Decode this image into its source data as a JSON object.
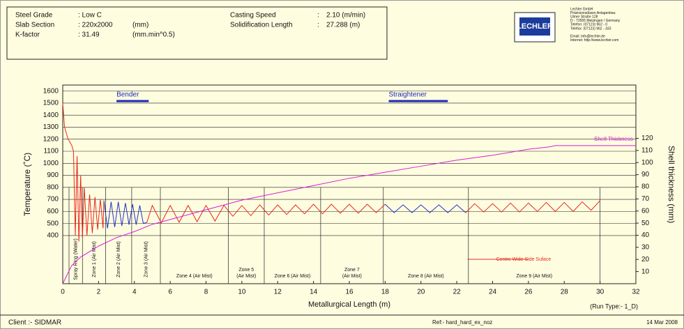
{
  "header": {
    "rows": [
      [
        "Steel Grade",
        ": Low C",
        ""
      ],
      [
        "Slab Section",
        ": 220x2000",
        "(mm)"
      ],
      [
        "K-factor",
        ": 31.49",
        "(mm.min^0.5)"
      ]
    ],
    "rows2": [
      [
        "Casting Speed",
        ":",
        "2.10 (m/min)"
      ],
      [
        "Solidification Length",
        ":",
        "27.288 (m)"
      ]
    ],
    "logo": "LECHLER",
    "company": [
      "Lechler GmbH",
      "Präzisionsdüsen Anlagenbau",
      "Ulmer Straße 128",
      "D - 72555 Metzingen / Germany",
      "Telefon:   (07123) 962 - 0",
      "Telefax:   (07123) 962 - 333",
      "",
      "Email:     info@lechler.de",
      "Internet:  http://www.lechler.com"
    ]
  },
  "chart_data": {
    "type": "line",
    "ylabel": "Temperature  (˚C)",
    "y2label": "Shell thickness  (mm)",
    "xlabel": "Metallurgical Length (m)",
    "xlim": [
      0,
      32
    ],
    "xticks": [
      0,
      2,
      4,
      6,
      8,
      10,
      12,
      14,
      16,
      18,
      20,
      22,
      24,
      26,
      28,
      30,
      32
    ],
    "ylim": [
      0,
      1650
    ],
    "yticks": [
      400,
      500,
      600,
      700,
      800,
      900,
      1000,
      1100,
      1200,
      1300,
      1400,
      1500,
      1600
    ],
    "y2lim": [
      0,
      164
    ],
    "y2ticks": [
      10,
      20,
      30,
      40,
      50,
      60,
      70,
      80,
      90,
      100,
      110,
      120
    ],
    "grid": true,
    "series": [
      {
        "name": "Centre Wide Side Suface",
        "color": "#e8281e",
        "x": [
          0,
          0.1,
          0.3,
          0.5,
          0.6,
          0.7,
          0.8,
          0.9,
          1.0,
          1.1,
          1.2,
          1.35,
          1.5,
          1.65,
          1.8,
          1.95,
          2.1,
          2.25,
          2.3
        ],
        "values": [
          1500,
          1300,
          1200,
          1150,
          1100,
          400,
          1060,
          350,
          900,
          380,
          800,
          400,
          740,
          420,
          720,
          450,
          700,
          460,
          690
        ]
      },
      {
        "color": "#2232c8",
        "x": [
          2.3,
          2.5,
          2.7,
          2.9,
          3.1,
          3.3,
          3.5,
          3.7,
          3.9,
          4.1,
          4.3,
          4.5,
          4.7
        ],
        "values": [
          690,
          460,
          680,
          470,
          680,
          480,
          670,
          490,
          660,
          490,
          650,
          500,
          510
        ]
      },
      {
        "color": "#e8281e",
        "x": [
          4.7,
          5.0,
          5.5,
          6.0,
          6.5,
          7.0,
          7.5,
          8.0,
          8.5,
          9.0,
          9.5,
          10.0,
          10.5,
          11.0,
          11.5,
          12.0,
          12.5,
          13.0,
          13.5,
          14.0,
          14.5,
          15.0,
          15.5,
          16.0,
          16.5,
          17.0,
          17.5,
          18.0
        ],
        "values": [
          510,
          650,
          505,
          650,
          510,
          650,
          515,
          650,
          520,
          650,
          560,
          650,
          565,
          655,
          570,
          655,
          575,
          655,
          580,
          660,
          580,
          660,
          585,
          660,
          585,
          660,
          590,
          660
        ]
      },
      {
        "color": "#2232c8",
        "x": [
          18.0,
          18.5,
          19.0,
          19.5,
          20.0,
          20.5,
          21.0,
          21.5,
          22.0,
          22.5
        ],
        "values": [
          660,
          590,
          655,
          590,
          655,
          590,
          655,
          590,
          655,
          590
        ]
      },
      {
        "color": "#e8281e",
        "x": [
          22.5,
          23.0,
          23.5,
          24.0,
          24.5,
          25.0,
          25.5,
          26.0,
          26.5,
          27.0,
          27.5,
          28.0,
          28.5,
          29.0,
          29.5,
          30.0
        ],
        "values": [
          590,
          665,
          595,
          665,
          595,
          670,
          595,
          670,
          600,
          675,
          600,
          675,
          600,
          680,
          610,
          690
        ]
      },
      {
        "name": "Shell Thickness",
        "color": "#d81ed8",
        "axis": "y2",
        "x": [
          0,
          0.5,
          1,
          2,
          3,
          4,
          5,
          6,
          8,
          10,
          12,
          14,
          16,
          18,
          20,
          22,
          24,
          26,
          27.2,
          27.5,
          32
        ],
        "values": [
          0,
          15,
          22,
          31,
          38,
          43,
          49,
          53,
          61,
          69,
          75,
          81,
          87,
          92,
          97,
          102,
          106,
          111,
          113,
          114,
          114
        ]
      }
    ],
    "zone_boundaries": [
      0.35,
      1.1,
      2.4,
      3.85,
      5.45,
      9.25,
      11.25,
      14.4,
      17.9,
      22.65,
      30.0
    ],
    "zones": [
      {
        "lines": [
          "Spray Ring (Water)"
        ],
        "rotated": true
      },
      {
        "lines": [
          "Zone 1 (Air Mist)"
        ],
        "rotated": true
      },
      {
        "lines": [
          "Zone 2 (Air Mist)"
        ],
        "rotated": true
      },
      {
        "lines": [
          "Zone 3 (Air Mist)"
        ],
        "rotated": true
      },
      {
        "lines": [
          "Zone 4 (Air Mist)"
        ],
        "rotated": false
      },
      {
        "lines": [
          "Zone 5",
          "(Air Mist)"
        ],
        "rotated": false
      },
      {
        "lines": [
          "Zone 6 (Air Mist)"
        ],
        "rotated": false
      },
      {
        "lines": [
          "Zone 7",
          "(Air Mist)"
        ],
        "rotated": false
      },
      {
        "lines": [
          "Zone 8 (Air Mist)"
        ],
        "rotated": false
      },
      {
        "lines": [
          "Zone 9 (Air Mist)"
        ],
        "rotated": false
      }
    ],
    "annotations": [
      {
        "text": "Bender",
        "x": [
          3.0,
          4.8
        ]
      },
      {
        "text": "Straightener",
        "x": [
          18.2,
          21.5
        ]
      }
    ]
  },
  "footer": {
    "client": "Client :- SIDMAR",
    "ref": "Ref:- hard_hard_ex_noz",
    "date": "14 Mar 2008",
    "run": "(Run Type:- 1_D)"
  }
}
